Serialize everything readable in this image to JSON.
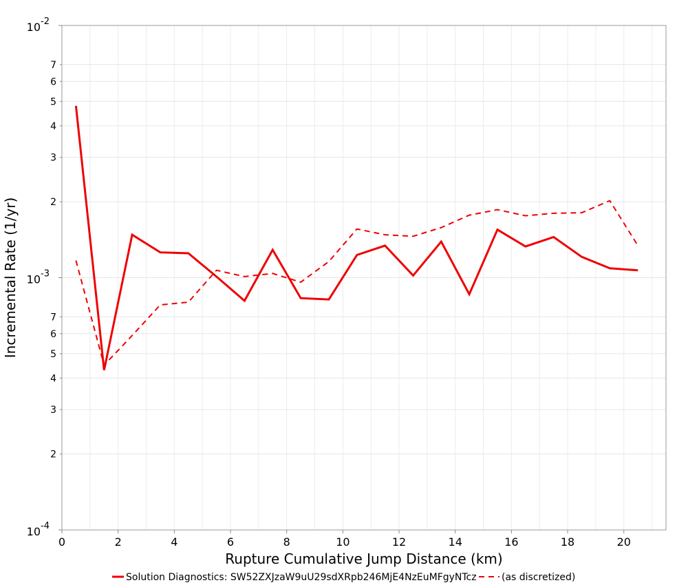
{
  "chart_data": {
    "type": "line",
    "title": "",
    "xlabel": "Rupture Cumulative Jump Distance (km)",
    "ylabel": "Incremental Rate (1/yr)",
    "xlim": [
      0,
      21.5
    ],
    "ylim": [
      0.0001,
      0.01
    ],
    "yscale": "log",
    "grid": true,
    "legend_position": "bottom",
    "x_ticks": [
      "0",
      "2",
      "4",
      "6",
      "8",
      "10",
      "12",
      "14",
      "16",
      "18",
      "20"
    ],
    "y_major_ticks": [
      {
        "base": "10",
        "exp": "-4",
        "value": 0.0001
      },
      {
        "base": "10",
        "exp": "-3",
        "value": 0.001
      },
      {
        "base": "10",
        "exp": "-2",
        "value": 0.01
      }
    ],
    "y_minor_ticks": [
      {
        "label": "2",
        "value": 0.0002
      },
      {
        "label": "3",
        "value": 0.0003
      },
      {
        "label": "4",
        "value": 0.0004
      },
      {
        "label": "5",
        "value": 0.0005
      },
      {
        "label": "6",
        "value": 0.0006
      },
      {
        "label": "7",
        "value": 0.0007
      },
      {
        "label": "2",
        "value": 0.002
      },
      {
        "label": "3",
        "value": 0.003
      },
      {
        "label": "4",
        "value": 0.004
      },
      {
        "label": "5",
        "value": 0.005
      },
      {
        "label": "6",
        "value": 0.006
      },
      {
        "label": "7",
        "value": 0.007
      }
    ],
    "series": [
      {
        "name": "Solution Diagnostics: SW52ZXJzaW9uU29sdXRpb246MjE4NzEuMFgyNTcz",
        "color": "#ee0000",
        "style": "solid",
        "x": [
          0.5,
          1.5,
          2.5,
          3.5,
          4.5,
          5.5,
          6.5,
          7.5,
          8.5,
          9.5,
          10.5,
          11.5,
          12.5,
          13.5,
          14.5,
          15.5,
          16.5,
          17.5,
          18.5,
          19.5,
          20.5
        ],
        "values": [
          0.0048,
          0.00043,
          0.00148,
          0.00126,
          0.00125,
          0.00101,
          0.00081,
          0.00129,
          0.00083,
          0.00082,
          0.00123,
          0.00134,
          0.00102,
          0.00139,
          0.00086,
          0.00155,
          0.00133,
          0.00145,
          0.00121,
          0.00109,
          0.00107
        ]
      },
      {
        "name": "(as discretized)",
        "color": "#ee0000",
        "style": "dashed",
        "x": [
          0.5,
          1.5,
          2.5,
          3.5,
          4.5,
          5.5,
          6.5,
          7.5,
          8.5,
          9.5,
          10.5,
          11.5,
          12.5,
          13.5,
          14.5,
          15.5,
          16.5,
          17.5,
          18.5,
          19.5,
          20.5
        ],
        "values": [
          0.00117,
          0.00045,
          0.00059,
          0.00078,
          0.0008,
          0.00107,
          0.00101,
          0.00104,
          0.00096,
          0.00116,
          0.00156,
          0.00148,
          0.00146,
          0.00158,
          0.00177,
          0.00186,
          0.00176,
          0.0018,
          0.00181,
          0.00202,
          0.00134
        ]
      }
    ]
  }
}
